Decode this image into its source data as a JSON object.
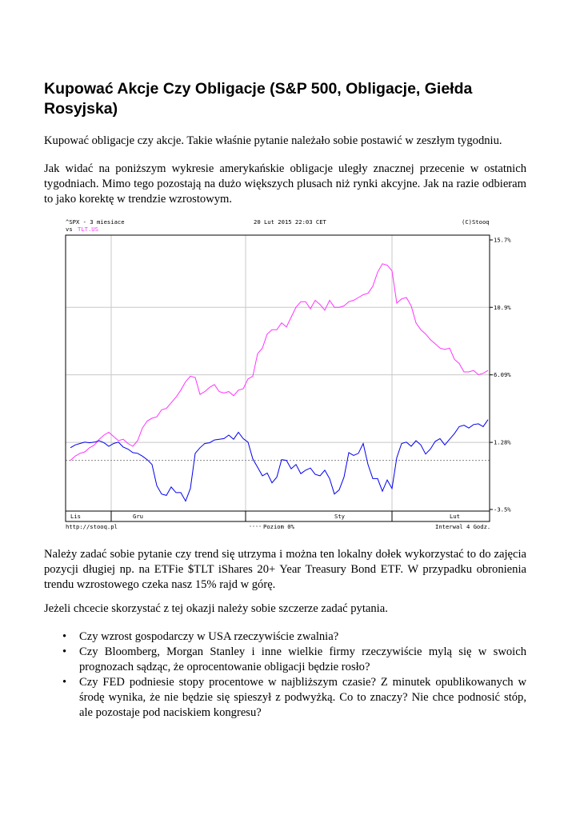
{
  "title": "Kupować Akcje Czy Obligacje (S&P 500, Obligacje, Giełda Rosyjska)",
  "paragraphs": [
    "Kupować obligacje czy akcje. Takie właśnie pytanie należało sobie postawić w zeszłym tygodniu.",
    "Jak widać na poniższym wykresie amerykańskie obligacje uległy znacznej przecenie w ostatnich tygodniach. Mimo tego pozostają na dużo większych plusach niż rynki akcyjne. Jak na razie odbieram to jako korektę w trendzie wzrostowym.",
    "Należy zadać sobie pytanie czy trend się utrzyma i można ten lokalny dołek wykorzystać to do zajęcia pozycji długiej np. na ETFie $TLT iShares 20+ Year Treasury Bond ETF. W przypadku obronienia trendu wzrostowego czeka nasz 15% rajd w górę.",
    "Jeżeli chcecie skorzystać z tej okazji należy sobie szczerze zadać pytania."
  ],
  "bullet_symbol": "•",
  "bullets": [
    "Czy wzrost gospodarczy w USA rzeczywiście zwalnia?",
    "Czy Bloomberg, Morgan Stanley i inne wielkie firmy rzeczywiście mylą się w swoich prognozach sądząc, że oprocentowanie obligacji będzie rosło?",
    "Czy FED podniesie stopy procentowe w najbliższym czasie? Z minutek opublikowanych w środę wynika, że nie będzie się spieszył z podwyżką. Co to znaczy? Nie chce podnosić stóp, ale pozostaje pod naciskiem kongresu?"
  ],
  "chart_data": {
    "type": "line",
    "title": "^SPX - 3 miesiace",
    "compare_label": "vs",
    "timestamp": "20 Lut 2015 22:03 CET",
    "copyright": "(C)Stooq",
    "source_url": "http://stooq.pl",
    "baseline_label": "Poziom 0%",
    "interval": "Interwal 4 Godz.",
    "ylim": [
      -3.5,
      15.7
    ],
    "yticks": [
      15.7,
      10.9,
      6.09,
      1.28,
      -3.5
    ],
    "ytick_labels": [
      "15.7%",
      "10.9%",
      "6.09%",
      "1.28%",
      "-3.5%"
    ],
    "month_labels": [
      "Lis",
      "Gru",
      "Sty",
      "Lut"
    ],
    "month_positions": [
      0,
      13,
      55,
      79
    ],
    "month_dividers": [
      8.5,
      36.5,
      67
    ],
    "colors": {
      "spx": "#0000ee",
      "tlt": "#ff33ff",
      "grid": "#c8c8c8",
      "frame": "#000000"
    },
    "series": [
      {
        "name": "^SPX",
        "values": [
          0.9,
          1.1,
          1.2,
          1.3,
          1.25,
          1.3,
          1.4,
          1.25,
          1.0,
          1.2,
          1.3,
          0.95,
          0.8,
          0.55,
          0.5,
          0.3,
          0.05,
          -0.3,
          -1.8,
          -2.4,
          -2.5,
          -1.9,
          -2.3,
          -2.3,
          -2.9,
          -2.0,
          0.5,
          0.9,
          1.2,
          1.25,
          1.45,
          1.5,
          1.55,
          1.8,
          1.5,
          2.0,
          1.55,
          1.3,
          0.1,
          -0.5,
          -1.1,
          -0.9,
          -1.6,
          -1.2,
          0.05,
          0.0,
          -0.6,
          -0.3,
          -0.95,
          -0.7,
          -0.55,
          -1.0,
          -1.1,
          -0.7,
          -1.3,
          -2.4,
          -2.1,
          -1.2,
          0.55,
          0.35,
          0.5,
          1.2,
          -0.3,
          -1.3,
          -1.3,
          -2.2,
          -1.4,
          -2.0,
          0.2,
          1.2,
          1.3,
          1.0,
          1.4,
          1.1,
          0.45,
          0.8,
          1.35,
          1.55,
          1.1,
          1.5,
          1.9,
          2.4,
          2.5,
          2.3,
          2.55,
          2.6,
          2.4,
          2.9
        ],
        "color": "#0000ee"
      },
      {
        "name": "TLT.US",
        "values": [
          0.0,
          0.3,
          0.5,
          0.6,
          0.9,
          1.1,
          1.5,
          1.8,
          2.0,
          1.7,
          1.4,
          1.5,
          1.2,
          1.0,
          1.4,
          2.3,
          2.8,
          3.0,
          3.1,
          3.6,
          3.7,
          4.1,
          4.5,
          5.0,
          5.6,
          6.0,
          5.9,
          4.7,
          4.9,
          5.2,
          5.4,
          4.9,
          4.8,
          4.9,
          4.6,
          5.0,
          5.1,
          5.8,
          6.0,
          7.6,
          8.0,
          9.0,
          9.3,
          9.3,
          9.8,
          9.5,
          10.2,
          10.9,
          11.3,
          11.3,
          10.8,
          11.4,
          11.1,
          10.7,
          11.4,
          10.9,
          10.9,
          11.0,
          11.3,
          11.4,
          11.6,
          11.8,
          11.9,
          12.4,
          13.4,
          14.0,
          13.9,
          13.5,
          11.2,
          11.5,
          11.6,
          11.0,
          9.8,
          9.3,
          9.0,
          8.6,
          8.3,
          8.0,
          7.9,
          8.0,
          7.2,
          6.9,
          6.3,
          6.3,
          6.4,
          6.1,
          6.2,
          6.4
        ],
        "color": "#ff33ff"
      }
    ]
  }
}
